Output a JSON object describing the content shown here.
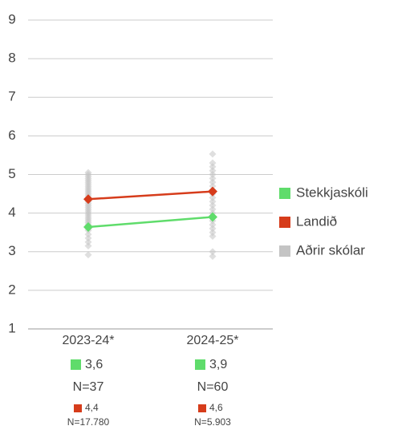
{
  "chart_data": {
    "type": "line",
    "categories": [
      "2023-24*",
      "2024-25*"
    ],
    "ylim": [
      1,
      9
    ],
    "yticks": [
      1,
      2,
      3,
      4,
      5,
      6,
      7,
      8,
      9
    ],
    "grid": true,
    "legend": "right",
    "series": [
      {
        "name": "Stekkjaskóli",
        "color": "#5fdc6b",
        "values": [
          3.64,
          3.9
        ],
        "value_labels": [
          "3,6",
          "3,9"
        ],
        "n_labels": [
          "N=37",
          "N=60"
        ]
      },
      {
        "name": "Landið",
        "color": "#d63c1b",
        "values": [
          4.36,
          4.56
        ],
        "value_labels": [
          "4,4",
          "4,6"
        ],
        "n_labels": [
          "N=17.780",
          "N=5.903"
        ]
      },
      {
        "name": "Aðrir skólar",
        "color": "#c4c4c4",
        "values": [
          [
            2.92,
            3.15,
            3.25,
            3.35,
            3.45,
            3.55,
            3.6,
            3.7,
            3.75,
            3.8,
            3.85,
            3.9,
            3.95,
            4.0,
            4.05,
            4.1,
            4.15,
            4.2,
            4.25,
            4.3,
            4.4,
            4.45,
            4.5,
            4.55,
            4.6,
            4.65,
            4.7,
            4.75,
            4.8,
            4.85,
            4.9,
            4.95,
            5.0,
            5.05
          ],
          [
            2.88,
            3.0,
            3.4,
            3.5,
            3.6,
            3.7,
            3.8,
            3.9,
            4.0,
            4.1,
            4.2,
            4.3,
            4.4,
            4.5,
            4.6,
            4.7,
            4.8,
            4.9,
            5.0,
            5.1,
            5.2,
            5.3,
            5.53
          ]
        ]
      }
    ]
  }
}
